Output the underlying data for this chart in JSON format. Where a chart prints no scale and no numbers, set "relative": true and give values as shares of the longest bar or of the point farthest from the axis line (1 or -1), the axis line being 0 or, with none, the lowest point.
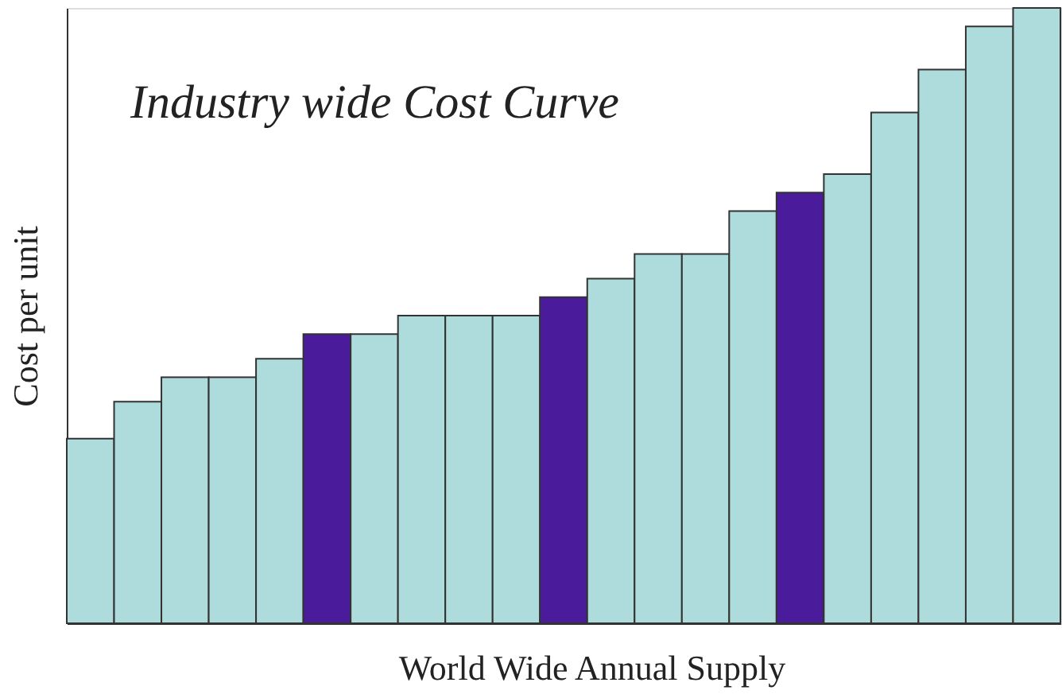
{
  "chart_data": {
    "type": "bar",
    "title": "Industry wide Cost Curve",
    "xlabel": "World Wide Annual Supply",
    "ylabel": "Cost per unit",
    "relative": true,
    "categories": [
      null,
      null,
      null,
      null,
      null,
      null,
      null,
      null,
      null,
      null,
      null,
      null,
      null,
      null,
      null,
      null,
      null,
      null,
      null,
      null,
      null
    ],
    "values": [
      0.3,
      0.36,
      0.4,
      0.4,
      0.43,
      0.47,
      0.47,
      0.5,
      0.5,
      0.5,
      0.53,
      0.56,
      0.6,
      0.6,
      0.67,
      0.7,
      0.73,
      0.83,
      0.9,
      0.97,
      1.0
    ],
    "colors": [
      "#aedcdc",
      "#aedcdc",
      "#aedcdc",
      "#aedcdc",
      "#aedcdc",
      "#4a1c9c",
      "#aedcdc",
      "#aedcdc",
      "#aedcdc",
      "#aedcdc",
      "#4a1c9c",
      "#aedcdc",
      "#aedcdc",
      "#aedcdc",
      "#aedcdc",
      "#4a1c9c",
      "#aedcdc",
      "#aedcdc",
      "#aedcdc",
      "#aedcdc",
      "#aedcdc"
    ],
    "grid": false
  }
}
